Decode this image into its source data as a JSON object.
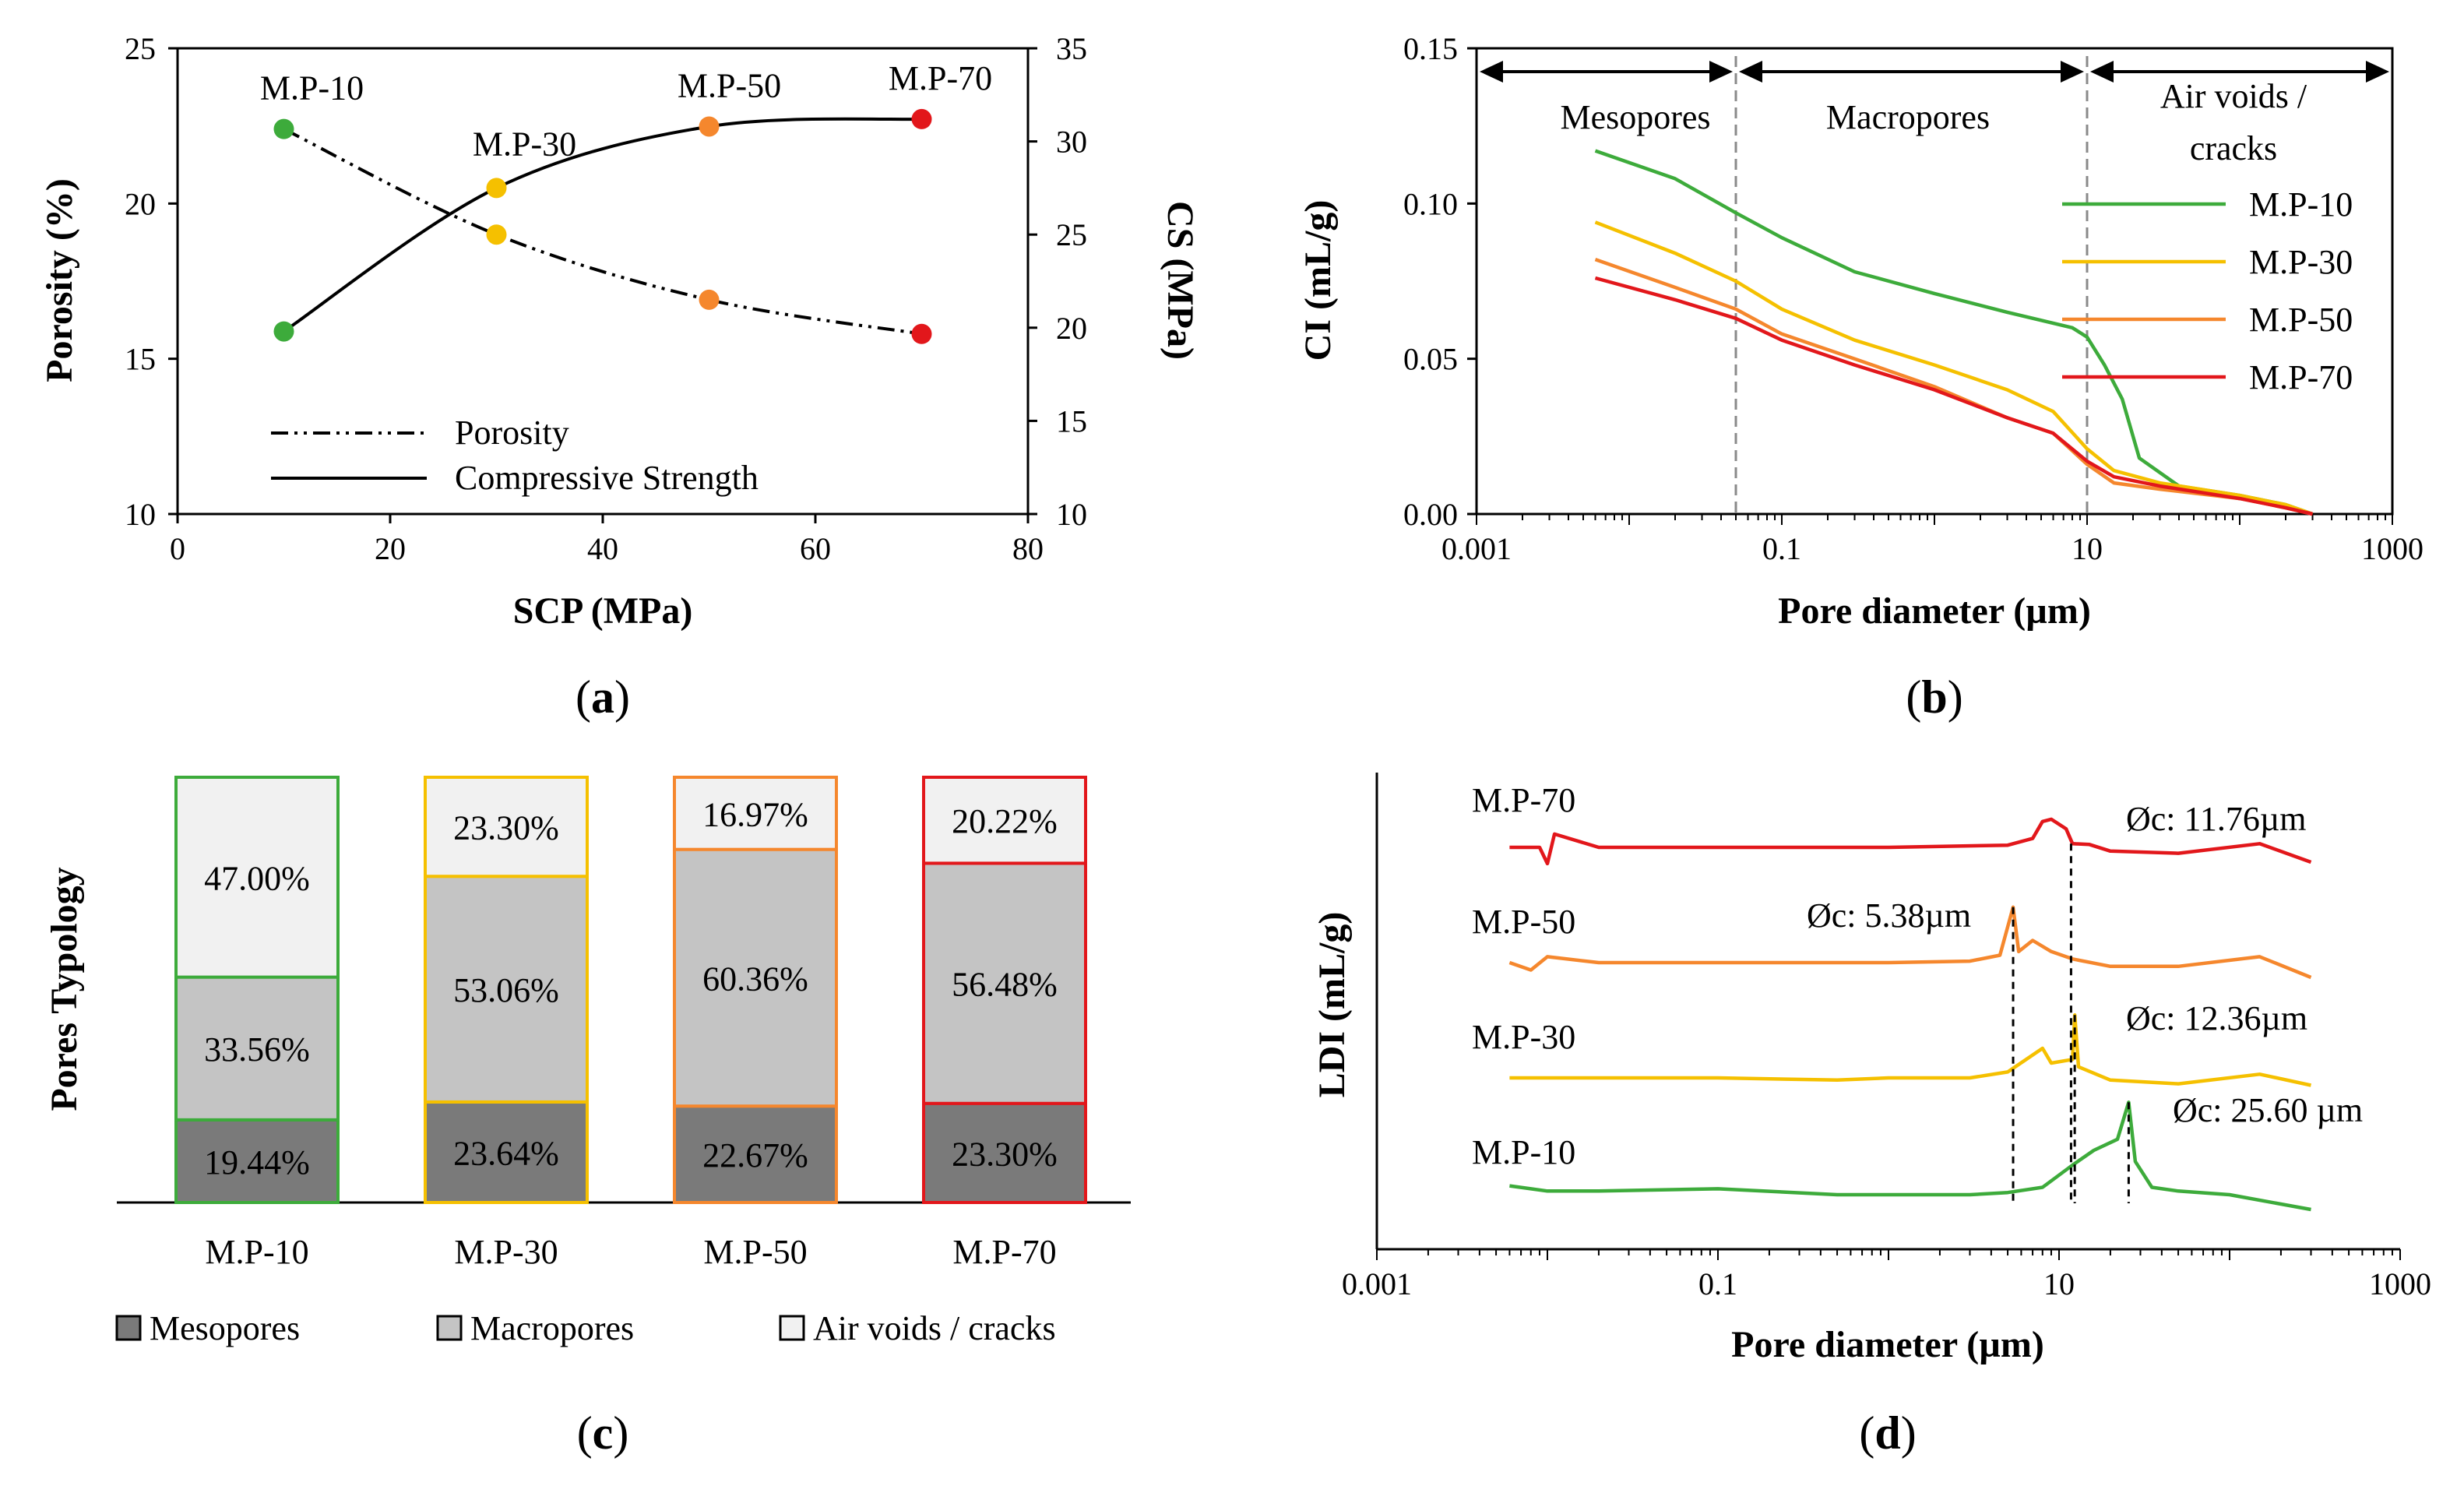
{
  "chart_data": [
    {
      "panel": "(a)",
      "panel_letter": "a",
      "type": "line",
      "xlabel": "SCP (MPa)",
      "ylabel": "Porosity (%)",
      "y2label": "CS (MPa)",
      "xlim": [
        0,
        80
      ],
      "ylim": [
        10,
        25
      ],
      "y2lim": [
        10,
        35
      ],
      "xticks": [
        0,
        20,
        40,
        60,
        80
      ],
      "yticks": [
        10,
        15,
        20,
        25
      ],
      "y2ticks": [
        10,
        15,
        20,
        25,
        30,
        35
      ],
      "x": [
        10,
        30,
        50,
        70
      ],
      "point_labels": [
        "M.P-10",
        "M.P-30",
        "M.P-50",
        "M.P-70"
      ],
      "point_colors": [
        "#3dab3b",
        "#f5c000",
        "#f5872d",
        "#e2171b"
      ],
      "series": [
        {
          "name": "Porosity",
          "axis": "left",
          "values": [
            22.4,
            19.0,
            16.9,
            15.8
          ]
        },
        {
          "name": "Compressive Strength",
          "axis": "right",
          "values": [
            19.8,
            27.5,
            30.8,
            31.2
          ]
        }
      ],
      "legend": [
        "Porosity",
        "Compressive Strength"
      ]
    },
    {
      "panel": "(b)",
      "panel_letter": "b",
      "type": "line",
      "xscale": "log",
      "xlabel": "Pore diameter (µm)",
      "ylabel": "CI (mL/g)",
      "xlim": [
        0.001,
        1000
      ],
      "ylim": [
        0.0,
        0.15
      ],
      "xticks": [
        "0.001",
        "0.1",
        "10",
        "1000"
      ],
      "yticks": [
        "0.00",
        "0.05",
        "0.10",
        "0.15"
      ],
      "regions": [
        {
          "label": "Mesopores",
          "range": [
            0.001,
            0.05
          ]
        },
        {
          "label": "Macropores",
          "range": [
            0.05,
            10
          ]
        },
        {
          "label": "Air voids /",
          "label2": "cracks",
          "range": [
            10,
            1000
          ]
        }
      ],
      "series": [
        {
          "name": "M.P-10",
          "color": "#3dab3b",
          "x": [
            0.006,
            0.02,
            0.05,
            0.1,
            0.3,
            1,
            3,
            8,
            10,
            13,
            17,
            22,
            40,
            100,
            200,
            300
          ],
          "y": [
            0.117,
            0.108,
            0.097,
            0.089,
            0.078,
            0.071,
            0.065,
            0.06,
            0.057,
            0.048,
            0.037,
            0.018,
            0.009,
            0.006,
            0.003,
            0.0
          ]
        },
        {
          "name": "M.P-30",
          "color": "#f5c000",
          "x": [
            0.006,
            0.02,
            0.05,
            0.1,
            0.3,
            1,
            3,
            6,
            10,
            15,
            30,
            100,
            200,
            300
          ],
          "y": [
            0.094,
            0.084,
            0.075,
            0.066,
            0.056,
            0.048,
            0.04,
            0.033,
            0.021,
            0.014,
            0.01,
            0.006,
            0.003,
            0.0
          ]
        },
        {
          "name": "M.P-50",
          "color": "#f5872d",
          "x": [
            0.006,
            0.02,
            0.05,
            0.1,
            0.3,
            1,
            3,
            6,
            10,
            15,
            30,
            100,
            200,
            300
          ],
          "y": [
            0.082,
            0.073,
            0.066,
            0.058,
            0.05,
            0.041,
            0.031,
            0.026,
            0.016,
            0.01,
            0.008,
            0.005,
            0.002,
            0.0
          ]
        },
        {
          "name": "M.P-70",
          "color": "#e2171b",
          "x": [
            0.006,
            0.02,
            0.05,
            0.1,
            0.3,
            1,
            3,
            6,
            10,
            15,
            30,
            100,
            200,
            300
          ],
          "y": [
            0.076,
            0.069,
            0.063,
            0.056,
            0.048,
            0.04,
            0.031,
            0.026,
            0.017,
            0.012,
            0.009,
            0.005,
            0.002,
            0.0
          ]
        }
      ]
    },
    {
      "panel": "(c)",
      "panel_letter": "c",
      "type": "bar",
      "stacked": true,
      "ylabel": "Pores Typology",
      "categories": [
        "M.P-10",
        "M.P-30",
        "M.P-50",
        "M.P-70"
      ],
      "category_colors": [
        "#3dab3b",
        "#f5c000",
        "#f5872d",
        "#e2171b"
      ],
      "series": [
        {
          "name": "Mesopores",
          "fill": "#7a7a7a",
          "values": [
            19.44,
            23.64,
            22.67,
            23.3
          ],
          "labels": [
            "19.44%",
            "23.64%",
            "22.67%",
            "23.30%"
          ]
        },
        {
          "name": "Macropores",
          "fill": "#c4c4c4",
          "values": [
            33.56,
            53.06,
            60.36,
            56.48
          ],
          "labels": [
            "33.56%",
            "53.06%",
            "60.36%",
            "56.48%"
          ]
        },
        {
          "name": "Air voids / cracks",
          "fill": "#f1f1f1",
          "values": [
            47.0,
            23.3,
            16.97,
            20.22
          ],
          "labels": [
            "47.00%",
            "23.30%",
            "16.97%",
            "20.22%"
          ]
        }
      ],
      "legend": [
        "Mesopores",
        "Macropores",
        "Air voids / cracks"
      ]
    },
    {
      "panel": "(d)",
      "panel_letter": "d",
      "type": "line",
      "xscale": "log",
      "xlabel": "Pore diameter (µm)",
      "ylabel": "LDI (mL/g)",
      "xlim": [
        0.001,
        1000
      ],
      "xticks": [
        "0.001",
        "0.1",
        "10",
        "1000"
      ],
      "series": [
        {
          "name": "M.P-70",
          "color": "#e2171b",
          "offset": 3,
          "x": [
            0.006,
            0.009,
            0.01,
            0.011,
            0.02,
            0.1,
            1,
            5,
            7,
            8,
            9,
            11,
            12,
            15,
            20,
            50,
            150,
            300
          ],
          "y": [
            0.0,
            0.0,
            -0.22,
            0.18,
            0.0,
            0.0,
            0.0,
            0.03,
            0.12,
            0.35,
            0.38,
            0.25,
            0.05,
            0.04,
            -0.05,
            -0.08,
            0.05,
            -0.2
          ]
        },
        {
          "name": "M.P-50",
          "color": "#f5872d",
          "offset": 2,
          "x": [
            0.006,
            0.008,
            0.01,
            0.02,
            0.1,
            1,
            3,
            4.5,
            5.38,
            5.8,
            7,
            9,
            12,
            20,
            50,
            150,
            300
          ],
          "y": [
            0.0,
            -0.1,
            0.08,
            0.0,
            0.0,
            0.0,
            0.02,
            0.1,
            0.75,
            0.15,
            0.3,
            0.15,
            0.05,
            -0.05,
            -0.05,
            0.08,
            -0.2
          ]
        },
        {
          "name": "M.P-30",
          "color": "#f5c000",
          "offset": 1,
          "x": [
            0.006,
            0.01,
            0.02,
            0.1,
            0.5,
            1,
            3,
            5,
            8,
            9,
            12,
            12.36,
            13,
            20,
            50,
            150,
            300
          ],
          "y": [
            0.0,
            0.0,
            0.0,
            0.0,
            -0.03,
            0.0,
            0.0,
            0.08,
            0.4,
            0.2,
            0.25,
            0.85,
            0.15,
            -0.03,
            -0.08,
            0.05,
            -0.1
          ]
        },
        {
          "name": "M.P-10",
          "color": "#3dab3b",
          "offset": 0,
          "x": [
            0.006,
            0.01,
            0.02,
            0.1,
            0.5,
            1,
            3,
            5,
            8,
            12,
            16,
            22,
            25.6,
            28,
            35,
            50,
            100,
            300
          ],
          "y": [
            0.12,
            0.05,
            0.05,
            0.08,
            0.0,
            0.0,
            0.0,
            0.03,
            0.1,
            0.4,
            0.6,
            0.75,
            1.25,
            0.45,
            0.1,
            0.05,
            0.0,
            -0.2
          ]
        }
      ],
      "critical_diameters": [
        {
          "series": "M.P-70",
          "value": 11.76,
          "label": "Øc: 11.76µm"
        },
        {
          "series": "M.P-50",
          "value": 5.38,
          "label": "Øc: 5.38µm"
        },
        {
          "series": "M.P-30",
          "value": 12.36,
          "label": "Øc: 12.36µm"
        },
        {
          "series": "M.P-10",
          "value": 25.6,
          "label": "Øc: 25.60 µm"
        }
      ]
    }
  ]
}
